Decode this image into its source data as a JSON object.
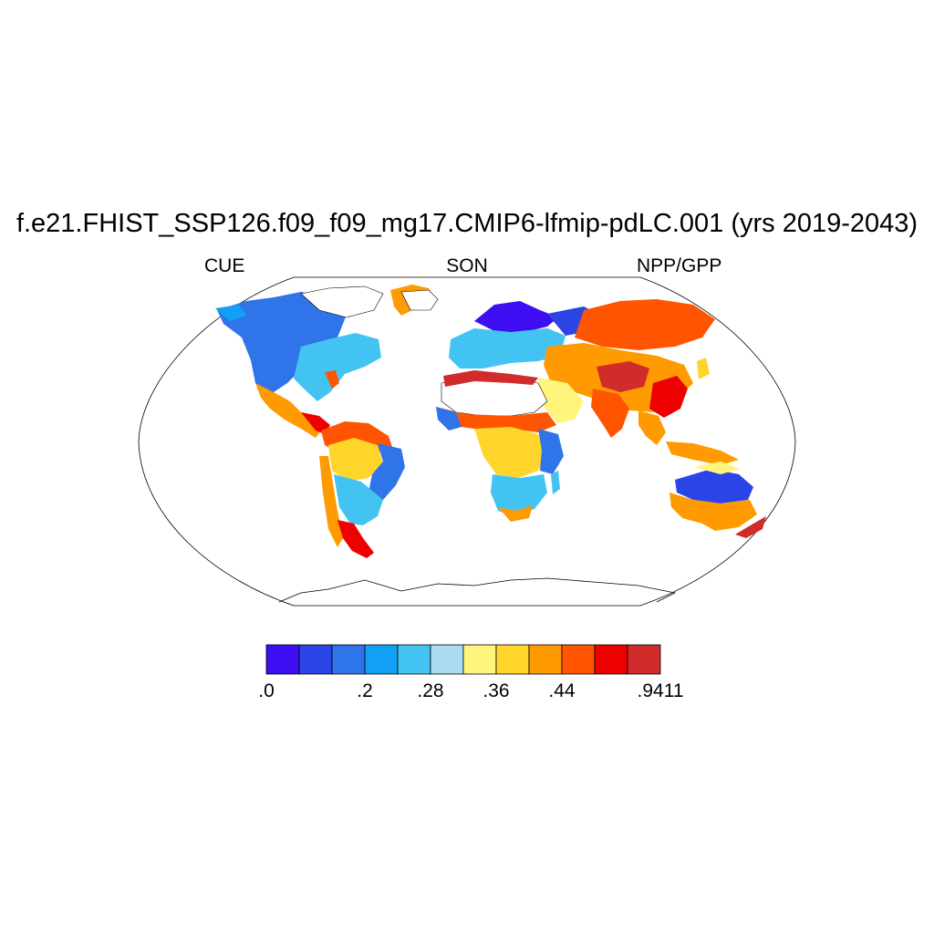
{
  "figure": {
    "title": "f.e21.FHIST_SSP126.f09_f09_mg17.CMIP6-lfmip-pdLC.001 (yrs 2019-2043)",
    "left_label": "CUE",
    "center_label": "SON",
    "right_label": "NPP/GPP"
  },
  "map": {
    "projection": "Robinson",
    "variable": "CUE",
    "season": "SON",
    "regions": [
      {
        "name": "North America boreal/west",
        "level": 3
      },
      {
        "name": "North America east",
        "level": 4
      },
      {
        "name": "Mexico & Central America",
        "level": 8
      },
      {
        "name": "Amazon",
        "level": 7
      },
      {
        "name": "Brazil east",
        "level": 2
      },
      {
        "name": "Patagonia",
        "level": 10
      },
      {
        "name": "Northern Europe",
        "level": 0
      },
      {
        "name": "Europe",
        "level": 3
      },
      {
        "name": "Siberia",
        "level": 9
      },
      {
        "name": "Tibet & Central Asia",
        "level": 11
      },
      {
        "name": "Sahel",
        "level": 10
      },
      {
        "name": "Central Africa",
        "level": 7
      },
      {
        "name": "Southern Africa",
        "level": 4
      },
      {
        "name": "Southeast Asia",
        "level": 9
      },
      {
        "name": "Australia interior",
        "level": 1
      },
      {
        "name": "New Zealand",
        "level": 11
      }
    ]
  },
  "colorbar": {
    "colors": [
      "#3d0ef2",
      "#2a44e6",
      "#2f74e8",
      "#12a0f4",
      "#43c3f2",
      "#a9dbf3",
      "#fff57d",
      "#ffd52b",
      "#ff9a00",
      "#ff5500",
      "#ee0000",
      "#d22b2b"
    ],
    "tick_labels": [
      ".0",
      ".2",
      ".28",
      ".36",
      ".44",
      ".9411"
    ],
    "tick_index": [
      0,
      3,
      5,
      7,
      9,
      12
    ]
  }
}
